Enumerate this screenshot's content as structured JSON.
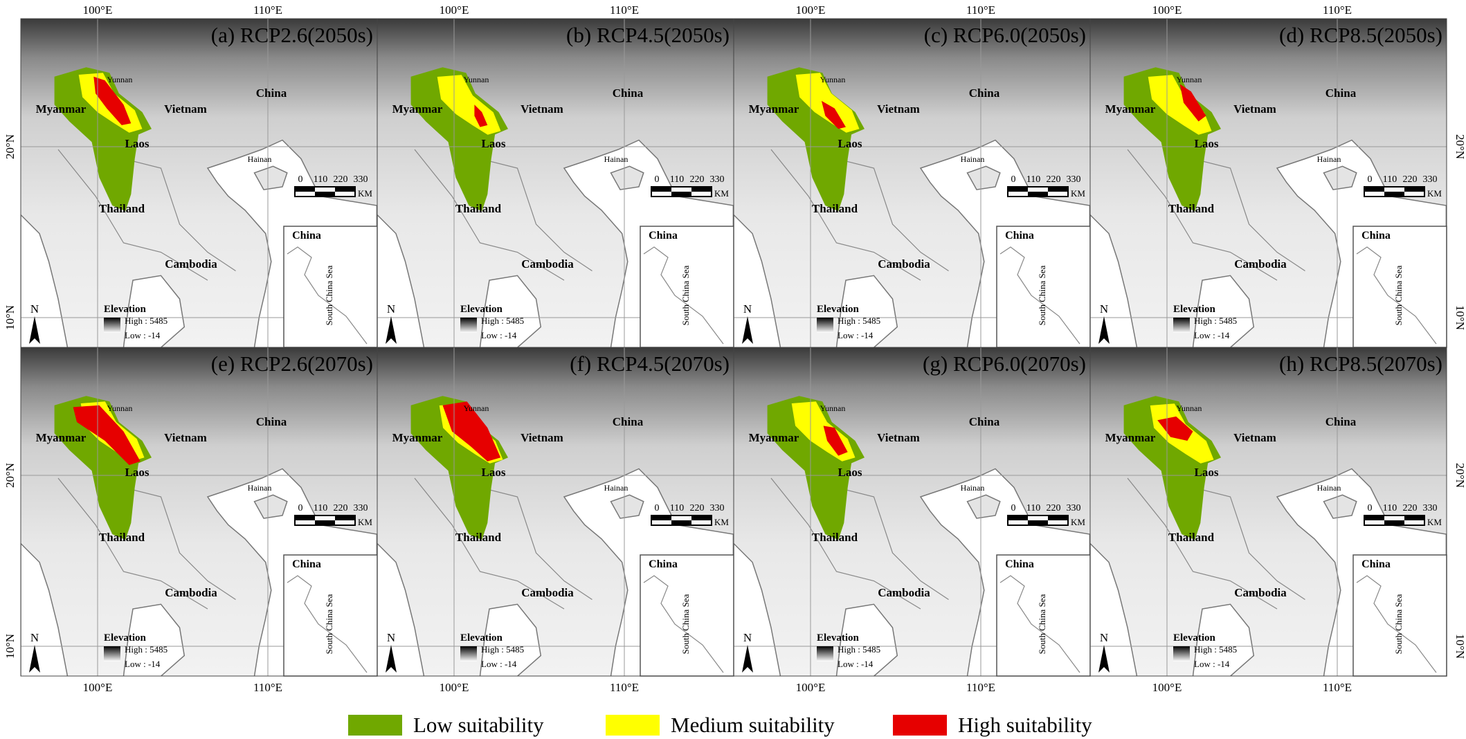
{
  "panels": [
    {
      "title": "(a) RCP2.6(2050s)"
    },
    {
      "title": "(b) RCP4.5(2050s)"
    },
    {
      "title": "(c) RCP6.0(2050s)"
    },
    {
      "title": "(d) RCP8.5(2050s)"
    },
    {
      "title": "(e) RCP2.6(2070s)"
    },
    {
      "title": "(f) RCP4.5(2070s)"
    },
    {
      "title": "(g) RCP6.0(2070s)"
    },
    {
      "title": "(h) RCP8.5(2070s)"
    }
  ],
  "map_labels": {
    "china": "China",
    "yunnan": "Yunnan",
    "myanmar": "Myanmar",
    "vietnam": "Vietnam",
    "laos": "Laos",
    "hainan": "Hainan",
    "thailand": "Thailand",
    "cambodia": "Cambodia"
  },
  "scale_bar": {
    "ticks": [
      "0",
      "110",
      "220",
      "330"
    ],
    "unit": "KM"
  },
  "inset": {
    "title": "China",
    "sea": "South China Sea"
  },
  "north": "N",
  "elevation": {
    "title": "Elevation",
    "high": "High : 5485",
    "low": "Low : -14"
  },
  "graticule": {
    "lon": [
      "100°E",
      "110°E"
    ],
    "lat": [
      "20°N",
      "10°N"
    ]
  },
  "legend": [
    {
      "label": "Low suitability",
      "color": "#70a800"
    },
    {
      "label": "Medium suitability",
      "color": "#ffff00"
    },
    {
      "label": "High suitability",
      "color": "#e60000"
    }
  ]
}
